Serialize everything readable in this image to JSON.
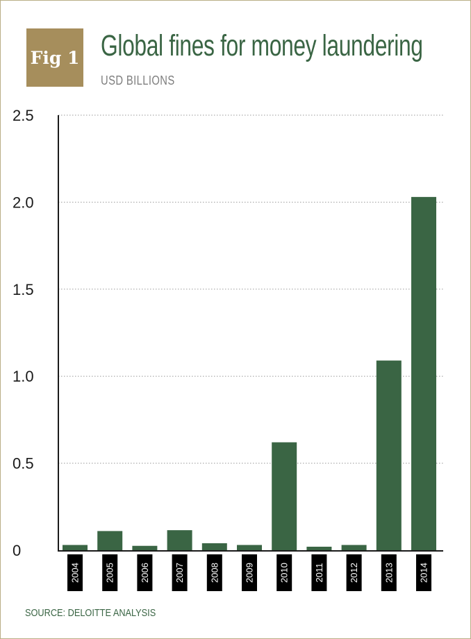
{
  "header": {
    "badge": "Fig 1",
    "title": "Global fines for money laundering",
    "subtitle": "USD BILLIONS"
  },
  "footer": {
    "source": "SOURCE: DELOITTE ANALYSIS"
  },
  "colors": {
    "bar": "#3a6544",
    "badge": "#a68e5c",
    "title": "#3a6544",
    "tick_label_bg": "#000000",
    "grid": "#9a9a9a"
  },
  "chart_data": {
    "type": "bar",
    "categories": [
      "2004",
      "2005",
      "2006",
      "2007",
      "2008",
      "2009",
      "2010",
      "2011",
      "2012",
      "2013",
      "2014"
    ],
    "values": [
      0.03,
      0.11,
      0.025,
      0.115,
      0.04,
      0.03,
      0.62,
      0.02,
      0.03,
      1.09,
      2.03
    ],
    "title": "Global fines for money laundering",
    "ylabel": "USD BILLIONS",
    "xlabel": "",
    "ylim": [
      0,
      2.5
    ],
    "yticks": [
      0,
      0.5,
      1.0,
      1.5,
      2.0,
      2.5
    ],
    "ytick_labels": [
      "0",
      "0.5",
      "1.0",
      "1.5",
      "2.0",
      "2.5"
    ],
    "grid": true,
    "grid_style": "dotted horizontal"
  }
}
